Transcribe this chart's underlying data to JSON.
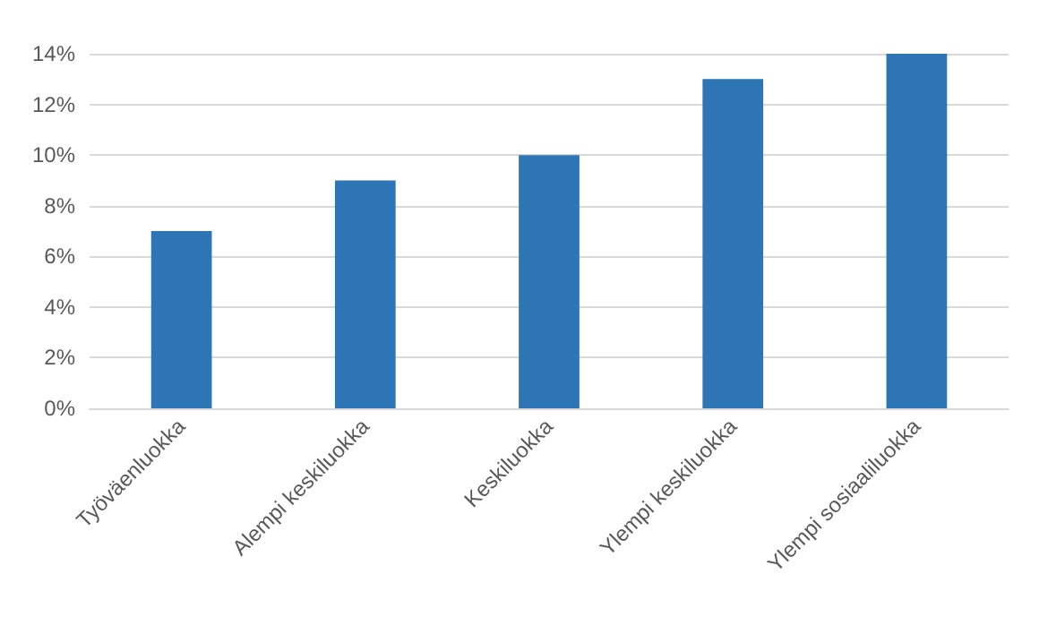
{
  "chart_data": {
    "type": "bar",
    "categories": [
      "Työväenluokka",
      "Alempi keskiluokka",
      "Keskiluokka",
      "Ylempi keskiluokka",
      "Ylempi sosiaaliluokka"
    ],
    "values": [
      7,
      9,
      10,
      13,
      14
    ],
    "color": "#2e75b6",
    "ylim": [
      0,
      14
    ],
    "yticks": [
      {
        "value": 0,
        "label": "0%"
      },
      {
        "value": 2,
        "label": "2%"
      },
      {
        "value": 4,
        "label": "4%"
      },
      {
        "value": 6,
        "label": "6%"
      },
      {
        "value": 8,
        "label": "8%"
      },
      {
        "value": 10,
        "label": "10%"
      },
      {
        "value": 12,
        "label": "12%"
      },
      {
        "value": 14,
        "label": "14%"
      }
    ],
    "grid": "y"
  }
}
